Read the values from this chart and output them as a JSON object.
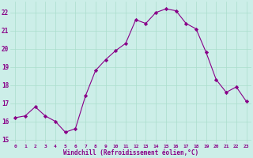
{
  "x": [
    0,
    1,
    2,
    3,
    4,
    5,
    6,
    7,
    8,
    9,
    10,
    11,
    12,
    13,
    14,
    15,
    16,
    17,
    18,
    19,
    20,
    21,
    22,
    23
  ],
  "y": [
    16.2,
    16.3,
    16.8,
    16.3,
    16.0,
    15.4,
    15.6,
    17.4,
    18.8,
    19.4,
    19.9,
    20.3,
    21.6,
    21.4,
    22.0,
    22.2,
    22.1,
    21.4,
    21.1,
    19.8,
    18.3,
    17.6,
    17.9,
    17.1
  ],
  "line_color": "#880088",
  "marker": "D",
  "marker_size": 2.2,
  "bg_color": "#cceee8",
  "grid_color": "#aaddcc",
  "xlabel": "Windchill (Refroidissement éolien,°C)",
  "xlabel_color": "#880088",
  "tick_color": "#880088",
  "ylim": [
    14.8,
    22.6
  ],
  "yticks": [
    15,
    16,
    17,
    18,
    19,
    20,
    21,
    22
  ],
  "xlim": [
    -0.5,
    23.5
  ],
  "xticks": [
    0,
    1,
    2,
    3,
    4,
    5,
    6,
    7,
    8,
    9,
    10,
    11,
    12,
    13,
    14,
    15,
    16,
    17,
    18,
    19,
    20,
    21,
    22,
    23
  ]
}
